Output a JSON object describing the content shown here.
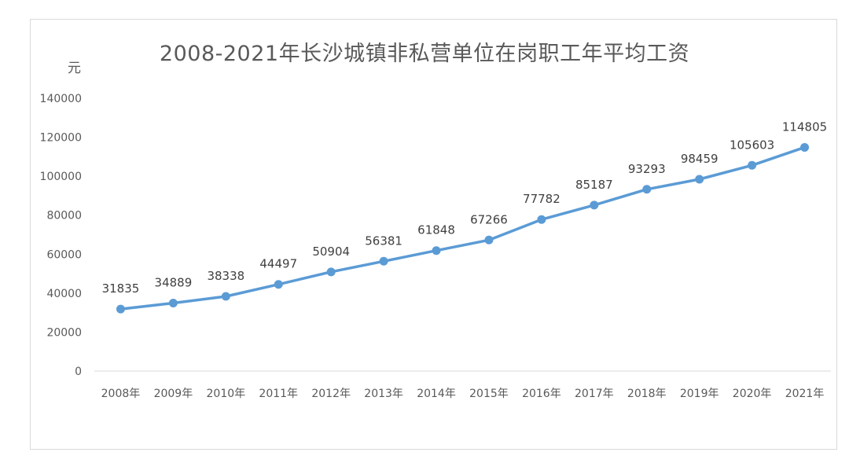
{
  "chart_data": {
    "type": "line",
    "title": "2008-2021年长沙城镇非私营单位在岗职工年平均工资",
    "ylabel": "元",
    "xlabel": "",
    "categories": [
      "2008年",
      "2009年",
      "2010年",
      "2011年",
      "2012年",
      "2013年",
      "2014年",
      "2015年",
      "2016年",
      "2017年",
      "2018年",
      "2019年",
      "2020年",
      "2021年"
    ],
    "values": [
      31835,
      34889,
      38338,
      44497,
      50904,
      56381,
      61848,
      67266,
      77782,
      85187,
      93293,
      98459,
      105603,
      114805
    ],
    "yticks": [
      "0",
      "20000",
      "40000",
      "60000",
      "80000",
      "100000",
      "120000",
      "140000"
    ],
    "ylim": [
      0,
      140000
    ],
    "grid": false,
    "legend": "none",
    "series_color": "#5b9bd5"
  }
}
